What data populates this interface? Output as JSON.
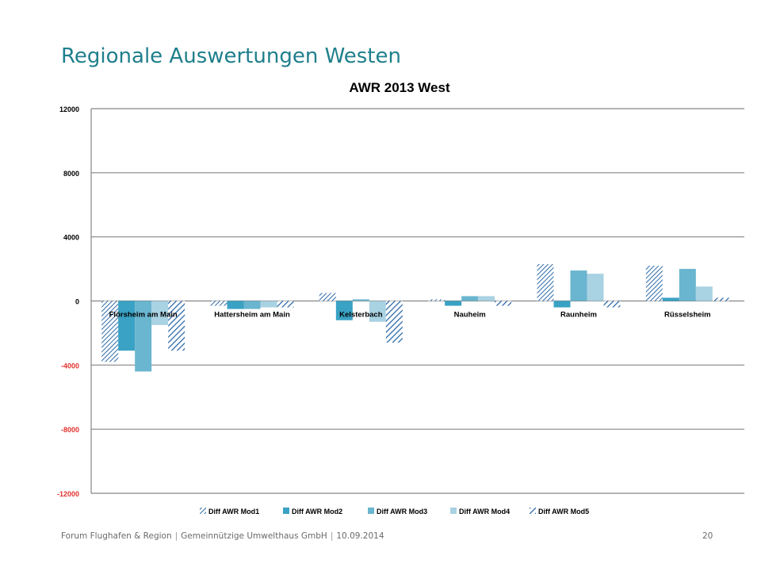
{
  "slide": {
    "title": "Regionale Auswertungen Westen",
    "footer": {
      "organization": "Forum Flughafen & Region",
      "company": "Gemeinnützige Umwelthaus GmbH",
      "date": "10.09.2014",
      "separator": "|",
      "page_number": "20"
    }
  },
  "chart_data": {
    "type": "bar",
    "title": "AWR 2013 West",
    "xlabel": "",
    "ylabel": "",
    "ylim": [
      -12000,
      12000
    ],
    "yticks": [
      "12000",
      "8000",
      "4000",
      "0",
      "-4000",
      "-8000",
      "-12000"
    ],
    "ytick_values": [
      12000,
      8000,
      4000,
      0,
      -4000,
      -8000,
      -12000
    ],
    "negative_tick_color": "#e0302c",
    "grid": true,
    "legend_position": "bottom",
    "categories": [
      "Flörsheim am Main",
      "Hattersheim am Main",
      "Kelsterbach",
      "Nauheim",
      "Raunheim",
      "Rüsselsheim"
    ],
    "series": [
      {
        "name": "Diff AWR Mod1",
        "color": "#2e6aa8",
        "pattern": "hatch",
        "values": [
          -3800,
          -300,
          500,
          100,
          2300,
          2200
        ]
      },
      {
        "name": "Diff AWR Mod2",
        "color": "#3aa2c4",
        "pattern": "solid",
        "values": [
          -3100,
          -500,
          -1200,
          -300,
          -400,
          200
        ]
      },
      {
        "name": "Diff AWR Mod3",
        "color": "#6ab5cf",
        "pattern": "solid",
        "values": [
          -4400,
          -500,
          100,
          300,
          1900,
          2000
        ]
      },
      {
        "name": "Diff AWR Mod4",
        "color": "#a9d2e2",
        "pattern": "solid",
        "values": [
          -1500,
          -400,
          -1300,
          300,
          1700,
          900
        ]
      },
      {
        "name": "Diff AWR Mod5",
        "color": "#2e6aa8",
        "pattern": "hatch-wide",
        "values": [
          -3100,
          -400,
          -2600,
          -300,
          -400,
          200
        ]
      }
    ]
  }
}
